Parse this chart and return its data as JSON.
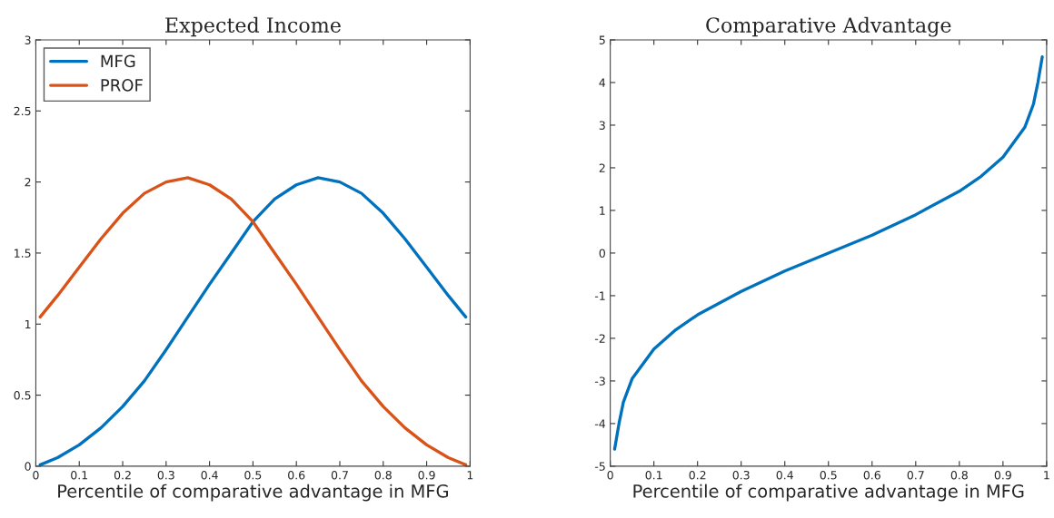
{
  "chart_data": [
    {
      "type": "line",
      "title": "Expected Income",
      "xlabel": "Percentile of comparative advantage in MFG",
      "xlim": [
        0,
        1
      ],
      "ylim": [
        0,
        3
      ],
      "xticks": [
        0,
        0.1,
        0.2,
        0.3,
        0.4,
        0.5,
        0.6,
        0.7,
        0.8,
        0.9,
        1
      ],
      "yticks": [
        0,
        0.5,
        1,
        1.5,
        2,
        2.5,
        3
      ],
      "grid": false,
      "legend": "top left",
      "marker": "none",
      "line_style": "solid",
      "x": [
        0.01,
        0.05,
        0.1,
        0.15,
        0.2,
        0.25,
        0.3,
        0.35,
        0.4,
        0.45,
        0.5,
        0.55,
        0.6,
        0.65,
        0.7,
        0.75,
        0.8,
        0.85,
        0.9,
        0.95,
        0.99
      ],
      "series": [
        {
          "name": "MFG",
          "color": "#0072bd",
          "values": [
            0.01,
            0.06,
            0.15,
            0.27,
            0.42,
            0.6,
            0.82,
            1.05,
            1.28,
            1.5,
            1.72,
            1.88,
            1.98,
            2.03,
            2.0,
            1.92,
            1.78,
            1.6,
            1.4,
            1.2,
            1.05
          ]
        },
        {
          "name": "PROF",
          "color": "#d95319",
          "values": [
            1.05,
            1.2,
            1.4,
            1.6,
            1.78,
            1.92,
            2.0,
            2.03,
            1.98,
            1.88,
            1.72,
            1.5,
            1.28,
            1.05,
            0.82,
            0.6,
            0.42,
            0.27,
            0.15,
            0.06,
            0.01
          ]
        }
      ]
    },
    {
      "type": "line",
      "title": "Comparative Advantage",
      "xlabel": "Percentile of comparative advantage in MFG",
      "xlim": [
        0,
        1
      ],
      "ylim": [
        -5,
        5
      ],
      "xticks": [
        0,
        0.1,
        0.2,
        0.3,
        0.4,
        0.5,
        0.6,
        0.7,
        0.8,
        0.9,
        1
      ],
      "yticks": [
        -5,
        -4,
        -3,
        -2,
        -1,
        0,
        1,
        2,
        3,
        4,
        5
      ],
      "grid": false,
      "legend": false,
      "marker": "none",
      "line_style": "solid",
      "x": [
        0.01,
        0.02,
        0.03,
        0.05,
        0.1,
        0.15,
        0.2,
        0.3,
        0.4,
        0.5,
        0.6,
        0.7,
        0.8,
        0.85,
        0.9,
        0.95,
        0.97,
        0.98,
        0.99
      ],
      "series": [
        {
          "color": "#0072bd",
          "values": [
            -4.6,
            -4.0,
            -3.5,
            -2.95,
            -2.25,
            -1.8,
            -1.45,
            -0.9,
            -0.42,
            0,
            0.42,
            0.9,
            1.45,
            1.8,
            2.25,
            2.95,
            3.5,
            4.0,
            4.6
          ]
        }
      ]
    }
  ]
}
